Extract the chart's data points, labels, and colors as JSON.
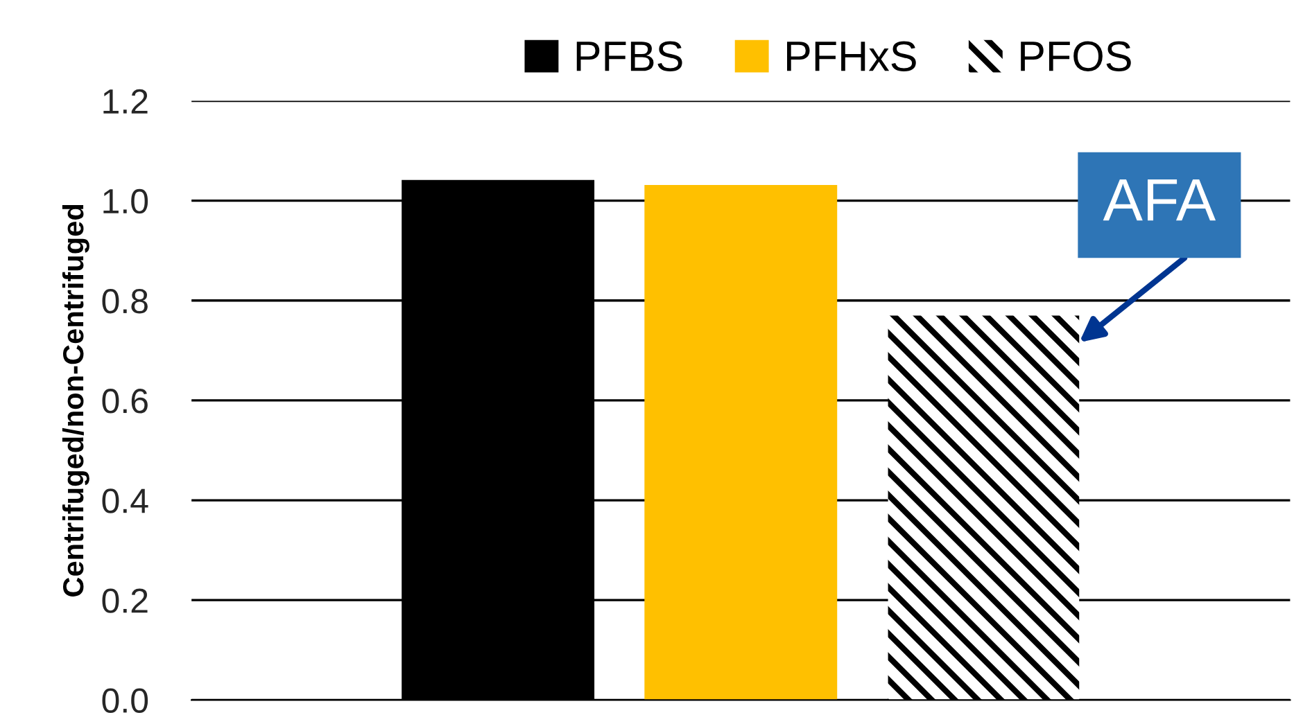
{
  "chart_data": {
    "type": "bar",
    "ylabel": "Centrifuged/non-Centrifuged",
    "categories": [
      null
    ],
    "series": [
      {
        "name": "PFBS",
        "color": "#000000",
        "values": [
          1.04
        ]
      },
      {
        "name": "PFHxS",
        "color": "#ffc000",
        "values": [
          1.03
        ]
      },
      {
        "name": "PFOS",
        "color": "#000000",
        "values": [
          0.77
        ]
      }
    ],
    "ylim": [
      0,
      1.2
    ],
    "yticks": [
      {
        "value": 0,
        "label": "0.0"
      },
      0.2,
      0.4,
      0.6,
      0.8,
      {
        "value": 1,
        "label": "1.0"
      },
      1.2
    ],
    "grid": "y",
    "legend": "top",
    "annotations": [
      "AFA"
    ]
  }
}
